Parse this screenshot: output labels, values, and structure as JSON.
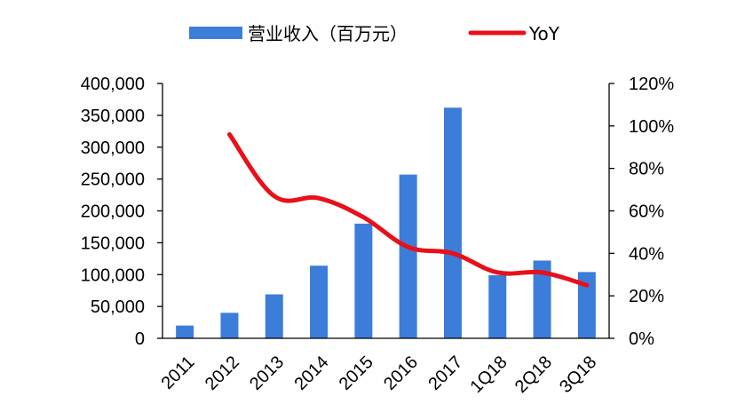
{
  "chart_data": {
    "type": "bar",
    "categories": [
      "2011",
      "2012",
      "2013",
      "2014",
      "2015",
      "2016",
      "2017",
      "1Q18",
      "2Q18",
      "3Q18"
    ],
    "series": [
      {
        "name": "营业收入（百万元）",
        "type": "bar",
        "axis": "left",
        "color": "#3C7DD9",
        "values": [
          20000,
          40000,
          69000,
          114000,
          180000,
          257000,
          362000,
          99000,
          122000,
          104000
        ]
      },
      {
        "name": "YoY",
        "type": "line",
        "axis": "right",
        "color": "#E8101A",
        "values": [
          null,
          0.96,
          0.67,
          0.66,
          0.57,
          0.43,
          0.4,
          0.31,
          0.31,
          0.25
        ]
      }
    ],
    "y_left": {
      "min": 0,
      "max": 400000,
      "ticks": [
        "0",
        "50,000",
        "100,000",
        "150,000",
        "200,000",
        "250,000",
        "300,000",
        "350,000",
        "400,000"
      ]
    },
    "y_right": {
      "min": 0,
      "max": 1.2,
      "ticks": [
        "0%",
        "20%",
        "40%",
        "60%",
        "80%",
        "100%",
        "120%"
      ]
    },
    "legend": {
      "position": "top",
      "items": [
        {
          "label": "营业收入（百万元）",
          "kind": "bar",
          "color": "#3C7DD9"
        },
        {
          "label": "YoY",
          "kind": "line",
          "color": "#E8101A"
        }
      ]
    },
    "grid": false
  }
}
